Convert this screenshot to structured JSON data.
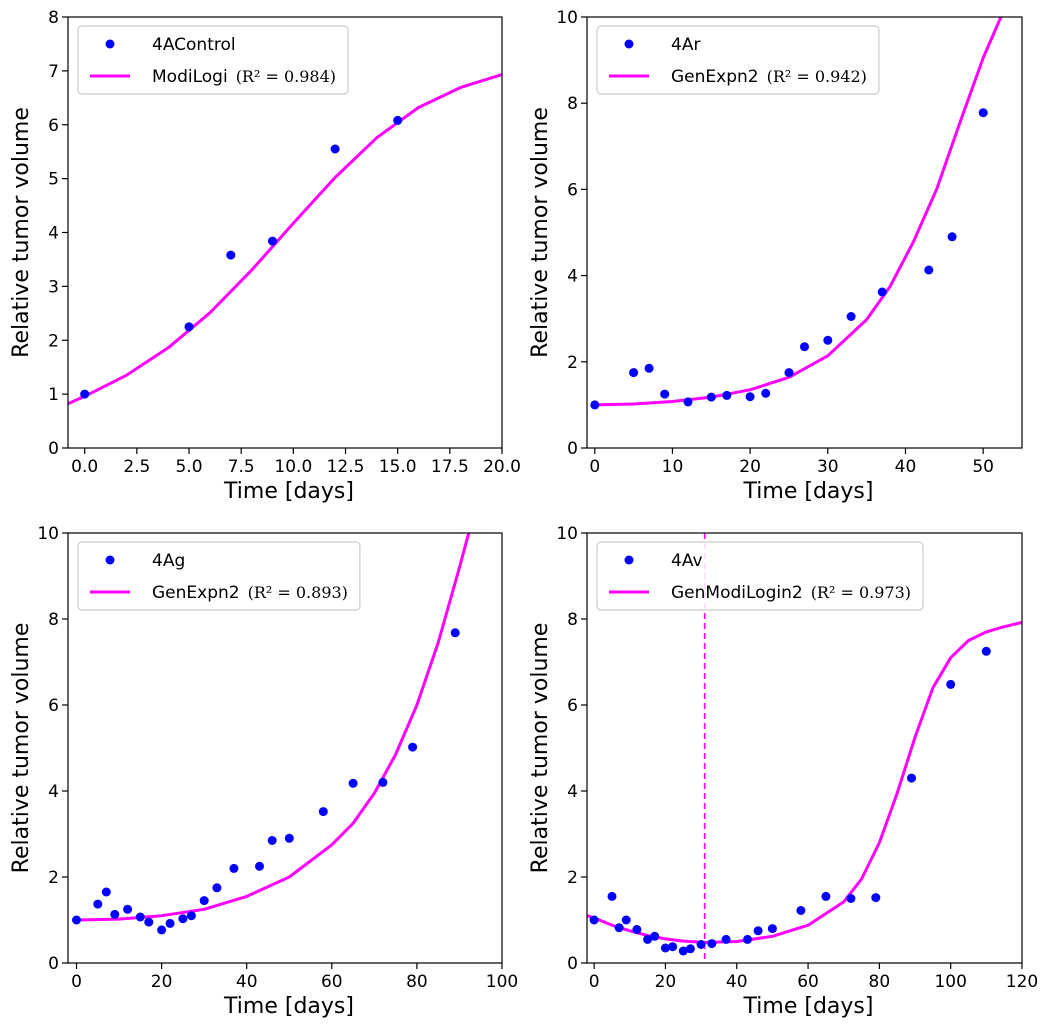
{
  "colors": {
    "points": "#0000ff",
    "fit": "#ff00ff",
    "axis": "#000000",
    "legend_border": "#cccccc"
  },
  "chart_data": [
    {
      "type": "scatter",
      "xlabel": "Time [days]",
      "ylabel": "Relative tumor volume",
      "xlim": [
        -0.8,
        20
      ],
      "ylim": [
        0,
        8
      ],
      "xticks": [
        0,
        2.5,
        5,
        7.5,
        10,
        12.5,
        15,
        17.5,
        20
      ],
      "xtick_labels": [
        "0.0",
        "2.5",
        "5.0",
        "7.5",
        "10.0",
        "12.5",
        "15.0",
        "17.5",
        "20.0"
      ],
      "yticks": [
        0,
        1,
        2,
        3,
        4,
        5,
        6,
        7,
        8
      ],
      "ytick_labels": [
        "0",
        "1",
        "2",
        "3",
        "4",
        "5",
        "6",
        "7",
        "8"
      ],
      "legend_location": "top-left",
      "series": [
        {
          "name": "4AControl",
          "kind": "points",
          "x": [
            0,
            5,
            7,
            9,
            12,
            15
          ],
          "y": [
            1.0,
            2.25,
            3.58,
            3.84,
            5.55,
            6.08
          ]
        },
        {
          "name": "ModiLogi",
          "r2_label": "(R² = 0.984)",
          "kind": "line",
          "x": [
            -0.8,
            0,
            2,
            4,
            6,
            8,
            10,
            12,
            14,
            16,
            18,
            20
          ],
          "y": [
            0.82,
            0.96,
            1.35,
            1.86,
            2.51,
            3.3,
            4.17,
            5.02,
            5.76,
            6.32,
            6.69,
            6.93
          ]
        }
      ],
      "vlines": []
    },
    {
      "type": "scatter",
      "xlabel": "Time [days]",
      "ylabel": "Relative tumor volume",
      "xlim": [
        -1,
        55
      ],
      "ylim": [
        0,
        10
      ],
      "xticks": [
        0,
        10,
        20,
        30,
        40,
        50
      ],
      "xtick_labels": [
        "0",
        "10",
        "20",
        "30",
        "40",
        "50"
      ],
      "yticks": [
        0,
        2,
        4,
        6,
        8,
        10
      ],
      "ytick_labels": [
        "0",
        "2",
        "4",
        "6",
        "8",
        "10"
      ],
      "legend_location": "top-left",
      "series": [
        {
          "name": "4Ar",
          "kind": "points",
          "x": [
            0,
            5,
            7,
            9,
            12,
            15,
            17,
            20,
            22,
            25,
            27,
            30,
            33,
            37,
            43,
            46,
            50
          ],
          "y": [
            1.0,
            1.75,
            1.85,
            1.25,
            1.07,
            1.18,
            1.22,
            1.19,
            1.27,
            1.75,
            2.35,
            2.5,
            3.05,
            3.62,
            4.13,
            4.9,
            7.78
          ]
        },
        {
          "name": "GenExpn2",
          "r2_label": "(R² = 0.942)",
          "kind": "line",
          "x": [
            0,
            5,
            10,
            15,
            20,
            25,
            30,
            35,
            38,
            41,
            44,
            47,
            50,
            53
          ],
          "y": [
            1.0,
            1.02,
            1.08,
            1.18,
            1.35,
            1.64,
            2.14,
            2.98,
            3.74,
            4.78,
            6.0,
            7.55,
            9.05,
            10.3
          ]
        }
      ],
      "vlines": []
    },
    {
      "type": "scatter",
      "xlabel": "Time [days]",
      "ylabel": "Relative tumor volume",
      "xlim": [
        -2,
        100
      ],
      "ylim": [
        0,
        10
      ],
      "xticks": [
        0,
        20,
        40,
        60,
        80,
        100
      ],
      "xtick_labels": [
        "0",
        "20",
        "40",
        "60",
        "80",
        "100"
      ],
      "yticks": [
        0,
        2,
        4,
        6,
        8,
        10
      ],
      "ytick_labels": [
        "0",
        "2",
        "4",
        "6",
        "8",
        "10"
      ],
      "legend_location": "top-left",
      "series": [
        {
          "name": "4Ag",
          "kind": "points",
          "x": [
            0,
            5,
            7,
            9,
            12,
            15,
            17,
            20,
            22,
            25,
            27,
            30,
            33,
            37,
            43,
            46,
            50,
            58,
            65,
            72,
            79,
            89
          ],
          "y": [
            1.0,
            1.37,
            1.65,
            1.13,
            1.25,
            1.07,
            0.95,
            0.77,
            0.92,
            1.03,
            1.1,
            1.45,
            1.75,
            2.2,
            2.25,
            2.85,
            2.9,
            3.52,
            4.18,
            4.2,
            5.02,
            7.68
          ]
        },
        {
          "name": "GenExpn2",
          "r2_label": "(R² = 0.893)",
          "kind": "line",
          "x": [
            0,
            10,
            20,
            30,
            40,
            50,
            60,
            65,
            70,
            75,
            80,
            85,
            90,
            93
          ],
          "y": [
            1.0,
            1.02,
            1.1,
            1.25,
            1.55,
            2.0,
            2.75,
            3.25,
            3.95,
            4.85,
            6.0,
            7.45,
            9.2,
            10.3
          ]
        }
      ],
      "vlines": []
    },
    {
      "type": "scatter",
      "xlabel": "Time [days]",
      "ylabel": "Relative tumor volume",
      "xlim": [
        -2,
        120
      ],
      "ylim": [
        0,
        10
      ],
      "xticks": [
        0,
        20,
        40,
        60,
        80,
        100,
        120
      ],
      "xtick_labels": [
        "0",
        "20",
        "40",
        "60",
        "80",
        "100",
        "120"
      ],
      "yticks": [
        0,
        2,
        4,
        6,
        8,
        10
      ],
      "ytick_labels": [
        "0",
        "2",
        "4",
        "6",
        "8",
        "10"
      ],
      "legend_location": "top-left",
      "series": [
        {
          "name": "4Av",
          "kind": "points",
          "x": [
            0,
            5,
            7,
            9,
            12,
            15,
            17,
            20,
            22,
            25,
            27,
            30,
            33,
            37,
            43,
            46,
            50,
            58,
            65,
            72,
            79,
            89,
            100,
            110
          ],
          "y": [
            1.0,
            1.55,
            0.82,
            1.0,
            0.78,
            0.55,
            0.62,
            0.35,
            0.38,
            0.28,
            0.33,
            0.43,
            0.45,
            0.55,
            0.55,
            0.75,
            0.8,
            1.22,
            1.55,
            1.5,
            1.52,
            4.3,
            6.48,
            7.25
          ]
        },
        {
          "name": "GenModiLogin2",
          "r2_label": "(R² = 0.973)",
          "kind": "line",
          "x": [
            -2,
            0,
            5,
            10,
            15,
            20,
            25,
            31,
            40,
            50,
            60,
            70,
            75,
            80,
            85,
            90,
            95,
            100,
            105,
            110,
            115,
            120
          ],
          "y": [
            1.1,
            1.05,
            0.88,
            0.75,
            0.64,
            0.56,
            0.51,
            0.48,
            0.5,
            0.62,
            0.88,
            1.42,
            1.95,
            2.8,
            3.95,
            5.25,
            6.4,
            7.1,
            7.5,
            7.7,
            7.82,
            7.92
          ]
        }
      ],
      "vlines": [
        {
          "x": 31,
          "style": "dashed"
        }
      ]
    }
  ]
}
